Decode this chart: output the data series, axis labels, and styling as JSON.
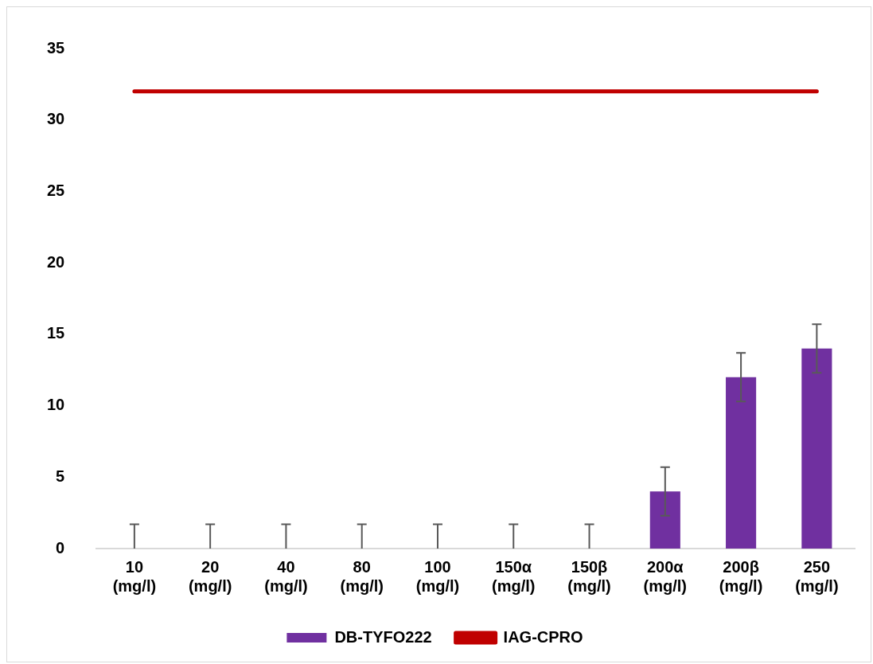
{
  "chart_data": {
    "type": "bar",
    "categories": [
      "10 (mg/l)",
      "20 (mg/l)",
      "40 (mg/l)",
      "80 (mg/l)",
      "100 (mg/l)",
      "150α (mg/l)",
      "150β (mg/l)",
      "200α (mg/l)",
      "200β (mg/l)",
      "250 (mg/l)"
    ],
    "series": [
      {
        "name": "DB-TYFO222",
        "color": "#7030a0",
        "values": [
          0,
          0,
          0,
          0,
          0,
          0,
          0,
          4,
          12,
          14
        ],
        "errors": [
          [
            0,
            1.7
          ],
          [
            0,
            1.7
          ],
          [
            0,
            1.7
          ],
          [
            0,
            1.7
          ],
          [
            0,
            1.7
          ],
          [
            0,
            1.7
          ],
          [
            0,
            1.7
          ],
          1.7,
          1.7,
          1.7
        ]
      },
      {
        "name": "IAG-CPRO",
        "type": "line",
        "color": "#c00000",
        "values": [
          32,
          32,
          32,
          32,
          32,
          32,
          32,
          32,
          32,
          32
        ]
      }
    ],
    "ylim": [
      0,
      35
    ],
    "yticks": [
      0,
      5,
      10,
      15,
      20,
      25,
      30,
      35
    ],
    "grid": false,
    "legend": "bottom",
    "marker": "none"
  }
}
